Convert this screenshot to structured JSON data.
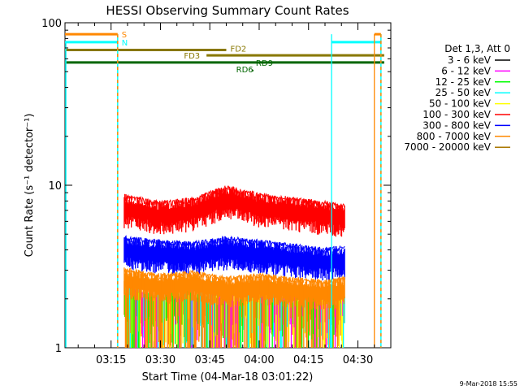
{
  "chart_data": {
    "type": "line",
    "title": "HESSI Observing Summary Count Rates",
    "xlabel": "Start Time (04-Mar-18 03:01:22)",
    "ylabel": "Count Rate (s⁻¹ detector⁻¹)",
    "y_scale": "log",
    "ylim": [
      1,
      100
    ],
    "xlim": [
      "03:01",
      "04:40"
    ],
    "x_ticks": [
      "03:15",
      "03:30",
      "03:45",
      "04:00",
      "04:15",
      "04:30"
    ],
    "y_ticks": [
      "1",
      "10",
      "100"
    ],
    "footer": "9-Mar-2018 15:55",
    "legend": {
      "title": "Det 1,3, Att 0",
      "placement": "right",
      "entries": [
        {
          "label": "3 - 6 keV",
          "color": "#000000"
        },
        {
          "label": "6 - 12 keV",
          "color": "#ff00ff"
        },
        {
          "label": "12 - 25 keV",
          "color": "#00ff00"
        },
        {
          "label": "25 - 50 keV",
          "color": "#00ffff"
        },
        {
          "label": "50 - 100 keV",
          "color": "#ffff00"
        },
        {
          "label": "100 - 300 keV",
          "color": "#ff0000"
        },
        {
          "label": "300 - 800 keV",
          "color": "#0000ff"
        },
        {
          "label": "800 - 7000 keV",
          "color": "#ff8800"
        },
        {
          "label": "7000 - 20000 keV",
          "color": "#aa7700"
        }
      ]
    },
    "data_window": [
      "03:19",
      "04:26"
    ],
    "series": [
      {
        "name": "100 - 300 keV",
        "color": "#ff0000",
        "x": [
          "03:19",
          "03:30",
          "03:40",
          "03:50",
          "04:00",
          "04:10",
          "04:20",
          "04:26"
        ],
        "y": [
          7.5,
          6.8,
          7.2,
          8.5,
          7.6,
          7.2,
          6.8,
          6.5
        ]
      },
      {
        "name": "300 - 800 keV",
        "color": "#0000ff",
        "x": [
          "03:19",
          "03:30",
          "03:40",
          "03:50",
          "04:00",
          "04:10",
          "04:20",
          "04:26"
        ],
        "y": [
          4.0,
          3.8,
          3.7,
          4.0,
          3.8,
          3.6,
          3.4,
          3.5
        ]
      },
      {
        "name": "800 - 7000 keV",
        "color": "#ff8800",
        "x": [
          "03:19",
          "03:30",
          "03:40",
          "03:50",
          "04:00",
          "04:10",
          "04:20",
          "04:26"
        ],
        "y": [
          2.5,
          2.3,
          2.4,
          2.2,
          2.3,
          2.2,
          2.1,
          2.2
        ]
      }
    ],
    "annotations": {
      "intervals": [
        {
          "label": "S",
          "color": "#ff8800",
          "y": 85,
          "x": [
            "03:01",
            "03:17"
          ]
        },
        {
          "label": "N",
          "color": "#00ffff",
          "y": 76,
          "x": [
            "03:01",
            "03:17"
          ]
        },
        {
          "label": "FD2",
          "color": "#887700",
          "y": 68,
          "x": [
            "03:01",
            "03:50"
          ]
        },
        {
          "label": "FD3",
          "color": "#887700",
          "y": 63,
          "x": [
            "03:44",
            "04:38"
          ]
        },
        {
          "label": "RD6",
          "color": "#006600",
          "y": 57,
          "x": [
            "03:01",
            "04:38"
          ]
        },
        {
          "label": "",
          "color": "#ff8800",
          "y": 85,
          "x": [
            "04:35",
            "04:37"
          ]
        },
        {
          "label": "",
          "color": "#00ffff",
          "y": 76,
          "x": [
            "04:22",
            "04:37"
          ]
        }
      ],
      "rd9_label": "RD9",
      "vertical_markers": [
        {
          "x": "03:17",
          "color": "#00ffff",
          "style": "dashed-orange"
        },
        {
          "x": "04:22",
          "color": "#00ffff",
          "style": "solid"
        },
        {
          "x": "04:35",
          "color": "#ff8800",
          "style": "solid"
        },
        {
          "x": "04:37",
          "color": "#00ffff",
          "style": "dashed-orange"
        }
      ]
    }
  }
}
